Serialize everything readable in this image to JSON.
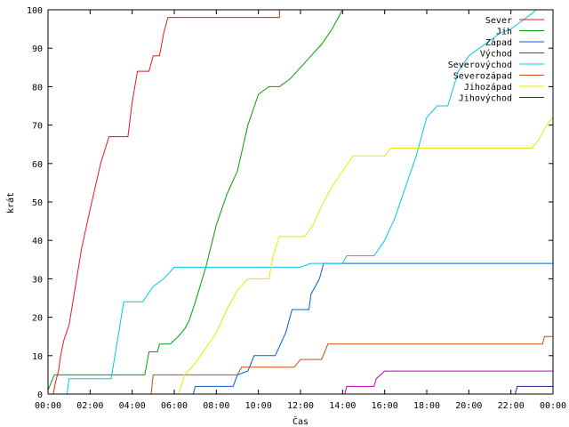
{
  "chart_data": {
    "type": "line",
    "xlabel": "Čas",
    "ylabel": "krát",
    "xlim": [
      0,
      24
    ],
    "ylim": [
      0,
      100
    ],
    "x_ticks": [
      0,
      2,
      4,
      6,
      8,
      10,
      12,
      14,
      16,
      18,
      20,
      22,
      24
    ],
    "x_tick_labels": [
      "00:00",
      "02:00",
      "04:00",
      "06:00",
      "08:00",
      "10:00",
      "12:00",
      "14:00",
      "16:00",
      "18:00",
      "20:00",
      "22:00",
      "00:00"
    ],
    "y_ticks": [
      0,
      10,
      20,
      30,
      40,
      50,
      60,
      70,
      80,
      90,
      100
    ],
    "y_tick_labels": [
      "0",
      "10",
      "20",
      "30",
      "40",
      "50",
      "60",
      "70",
      "80",
      "90",
      "100"
    ],
    "grid": false,
    "legend": "top-right",
    "series": [
      {
        "name": "Sever",
        "color": "#e41a1c",
        "points": [
          [
            0.25,
            0
          ],
          [
            0.35,
            3
          ],
          [
            0.5,
            6
          ],
          [
            0.6,
            10
          ],
          [
            0.75,
            14
          ],
          [
            1.0,
            18
          ],
          [
            1.3,
            28
          ],
          [
            1.6,
            38
          ],
          [
            2.0,
            48
          ],
          [
            2.5,
            60
          ],
          [
            2.9,
            67
          ],
          [
            3.8,
            67
          ],
          [
            4.0,
            76
          ],
          [
            4.25,
            84
          ],
          [
            4.8,
            84
          ],
          [
            5.0,
            88
          ],
          [
            5.3,
            88
          ],
          [
            5.5,
            94
          ],
          [
            5.7,
            98
          ],
          [
            11.0,
            98
          ],
          [
            11.0,
            100
          ]
        ]
      },
      {
        "name": "Jih",
        "color": "#00a000",
        "points": [
          [
            0,
            1
          ],
          [
            0.3,
            5
          ],
          [
            4.6,
            5
          ],
          [
            4.7,
            8
          ],
          [
            4.8,
            11
          ],
          [
            5.2,
            11
          ],
          [
            5.3,
            13
          ],
          [
            5.8,
            13
          ],
          [
            6.2,
            15
          ],
          [
            6.5,
            17
          ],
          [
            6.7,
            19
          ],
          [
            7.0,
            24
          ],
          [
            7.5,
            33
          ],
          [
            8.0,
            44
          ],
          [
            8.5,
            52
          ],
          [
            9.0,
            58
          ],
          [
            9.5,
            70
          ],
          [
            10.0,
            78
          ],
          [
            10.5,
            80
          ],
          [
            11.0,
            80
          ],
          [
            11.5,
            82
          ],
          [
            12.0,
            85
          ],
          [
            12.5,
            88
          ],
          [
            13.0,
            91
          ],
          [
            13.5,
            95
          ],
          [
            14.0,
            100
          ]
        ]
      },
      {
        "name": "Západ",
        "color": "#0060d0",
        "points": [
          [
            6.9,
            0
          ],
          [
            7.0,
            2
          ],
          [
            8.8,
            2
          ],
          [
            9.0,
            5
          ],
          [
            9.5,
            6
          ],
          [
            9.8,
            10
          ],
          [
            10.8,
            10
          ],
          [
            11.3,
            16
          ],
          [
            11.6,
            22
          ],
          [
            12.4,
            22
          ],
          [
            12.5,
            26
          ],
          [
            12.9,
            30
          ],
          [
            13.1,
            34
          ],
          [
            24,
            34
          ]
        ]
      },
      {
        "name": "Východ",
        "color": "#c000c0",
        "points": [
          [
            14.1,
            0
          ],
          [
            14.2,
            2
          ],
          [
            15.5,
            2
          ],
          [
            15.6,
            4
          ],
          [
            16.0,
            6
          ],
          [
            24,
            6
          ]
        ]
      },
      {
        "name": "Severovýchod",
        "color": "#00c8e8",
        "points": [
          [
            0.9,
            0
          ],
          [
            1.0,
            4
          ],
          [
            3.0,
            4
          ],
          [
            3.3,
            14
          ],
          [
            3.6,
            24
          ],
          [
            4.5,
            24
          ],
          [
            5.0,
            28
          ],
          [
            5.5,
            30
          ],
          [
            6.0,
            33
          ],
          [
            12.0,
            33
          ],
          [
            12.5,
            34
          ],
          [
            14.0,
            34
          ],
          [
            14.2,
            36
          ],
          [
            15.5,
            36
          ],
          [
            16.0,
            40
          ],
          [
            16.5,
            46
          ],
          [
            17.0,
            54
          ],
          [
            17.5,
            62
          ],
          [
            18.0,
            72
          ],
          [
            18.5,
            75
          ],
          [
            19.0,
            75
          ],
          [
            19.5,
            84
          ],
          [
            20.0,
            88
          ],
          [
            20.5,
            90
          ],
          [
            21.0,
            92
          ],
          [
            21.5,
            94
          ],
          [
            22.0,
            95
          ],
          [
            22.5,
            97
          ],
          [
            23.0,
            99
          ],
          [
            23.2,
            100
          ]
        ]
      },
      {
        "name": "Severozápad",
        "color": "#c05010",
        "points": [
          [
            4.9,
            0
          ],
          [
            5.0,
            5
          ],
          [
            9.0,
            5
          ],
          [
            9.2,
            7
          ],
          [
            11.7,
            7
          ],
          [
            12.0,
            9
          ],
          [
            13.0,
            9
          ],
          [
            13.3,
            13
          ],
          [
            23.5,
            13
          ],
          [
            23.6,
            15
          ],
          [
            24,
            15
          ]
        ]
      },
      {
        "name": "Jihozápad",
        "color": "#e8e800",
        "points": [
          [
            6.2,
            0
          ],
          [
            6.5,
            5
          ],
          [
            7.0,
            8
          ],
          [
            7.5,
            12
          ],
          [
            8.0,
            16
          ],
          [
            8.5,
            22
          ],
          [
            9.0,
            27
          ],
          [
            9.5,
            30
          ],
          [
            10.5,
            30
          ],
          [
            10.7,
            36
          ],
          [
            11.0,
            41
          ],
          [
            12.2,
            41
          ],
          [
            12.6,
            44
          ],
          [
            13.0,
            49
          ],
          [
            13.5,
            54
          ],
          [
            14.0,
            58
          ],
          [
            14.5,
            62
          ],
          [
            16.0,
            62
          ],
          [
            16.3,
            64
          ],
          [
            23.0,
            64
          ],
          [
            23.3,
            66
          ],
          [
            23.7,
            70
          ],
          [
            24,
            72
          ]
        ]
      },
      {
        "name": "Jihovýchod",
        "color": "#2020a0",
        "points": [
          [
            22.2,
            0
          ],
          [
            22.3,
            2
          ],
          [
            24,
            2
          ]
        ]
      }
    ]
  }
}
